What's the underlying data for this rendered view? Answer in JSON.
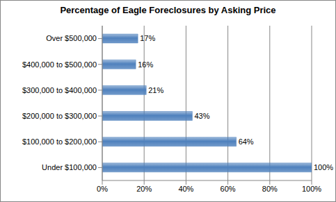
{
  "chart_data": {
    "type": "bar",
    "title": "Percentage of Eagle Foreclosures by Asking Price",
    "orientation": "horizontal",
    "categories": [
      "Over $500,000",
      "$400,000 to $500,000",
      "$300,000 to $400,000",
      "$200,000 to $300,000",
      "$100,000 to $200,000",
      "Under $100,000"
    ],
    "values": [
      17,
      16,
      21,
      43,
      64,
      100
    ],
    "value_labels": [
      "17%",
      "16%",
      "21%",
      "43%",
      "64%",
      "100%"
    ],
    "data_labels": true,
    "color": "#4f81bd",
    "xlim": [
      0,
      100
    ],
    "xticks": [
      {
        "value": 0,
        "label": "0%"
      },
      {
        "value": 20,
        "label": "20%"
      },
      {
        "value": 40,
        "label": "40%"
      },
      {
        "value": 60,
        "label": "60%"
      },
      {
        "value": 80,
        "label": "80%"
      },
      {
        "value": 100,
        "label": "100%"
      }
    ],
    "grid": true
  }
}
